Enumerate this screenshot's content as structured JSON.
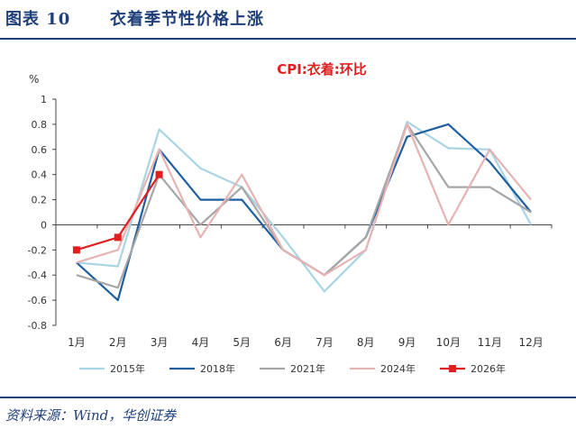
{
  "figure": {
    "label": "图表 10",
    "title": "衣着季节性价格上涨",
    "source": "资料来源：Wind，华创证券"
  },
  "chart_data": {
    "type": "line",
    "title": "CPI:衣着:环比",
    "ylabel": "%",
    "xlabel": "",
    "ylim": [
      -0.8,
      1.0
    ],
    "y_ticks": [
      "1",
      "0.8",
      "0.6",
      "0.4",
      "0.2",
      "0",
      "-0.2",
      "-0.4",
      "-0.6",
      "-0.8"
    ],
    "y_tick_values": [
      1,
      0.8,
      0.6,
      0.4,
      0.2,
      0,
      -0.2,
      -0.4,
      -0.6,
      -0.8
    ],
    "categories": [
      "1月",
      "2月",
      "3月",
      "4月",
      "5月",
      "6月",
      "7月",
      "8月",
      "9月",
      "10月",
      "11月",
      "12月"
    ],
    "grid": false,
    "legend_position": "bottom",
    "title_color": "#e02020",
    "series": [
      {
        "name": "2015年",
        "color": "#a8d4e4",
        "marker": "none",
        "values": [
          -0.3,
          -0.33,
          0.76,
          0.45,
          0.3,
          -0.1,
          -0.53,
          -0.2,
          0.82,
          0.61,
          0.6,
          0.0
        ]
      },
      {
        "name": "2018年",
        "color": "#1f5fa0",
        "marker": "none",
        "values": [
          -0.3,
          -0.6,
          0.6,
          0.2,
          0.2,
          -0.2,
          -0.4,
          -0.1,
          0.7,
          0.8,
          0.5,
          0.1
        ]
      },
      {
        "name": "2021年",
        "color": "#a6a6a6",
        "marker": "none",
        "values": [
          -0.4,
          -0.5,
          0.4,
          0.0,
          0.3,
          -0.2,
          -0.4,
          -0.1,
          0.8,
          0.3,
          0.3,
          0.1
        ]
      },
      {
        "name": "2024年",
        "color": "#e6b3b3",
        "marker": "none",
        "values": [
          -0.3,
          -0.2,
          0.6,
          -0.1,
          0.4,
          -0.2,
          -0.4,
          -0.2,
          0.8,
          0.0,
          0.6,
          0.2
        ]
      },
      {
        "name": "2026年",
        "color": "#e02020",
        "marker": "square",
        "values": [
          -0.2,
          -0.1,
          0.4,
          null,
          null,
          null,
          null,
          null,
          null,
          null,
          null,
          null
        ]
      }
    ]
  }
}
